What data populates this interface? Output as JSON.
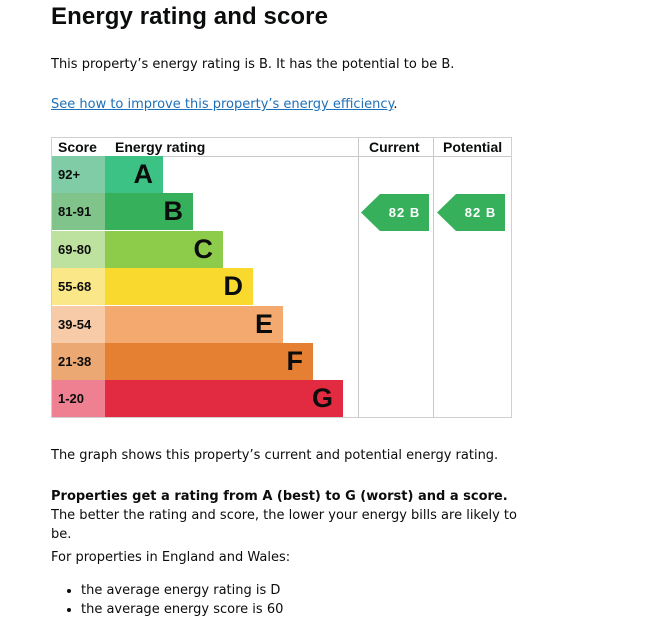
{
  "heading": "Energy rating and score",
  "intro": "This property’s energy rating is B. It has the potential to be B.",
  "improve_link": "See how to improve this property’s energy efficiency",
  "improve_link_suffix": ".",
  "chart": {
    "headers": {
      "score": "Score",
      "rating": "Energy rating",
      "current": "Current",
      "potential": "Potential"
    },
    "bands": [
      {
        "score": "92+",
        "letter": "A",
        "color": "#3dc285",
        "score_bg": "#7fcca6"
      },
      {
        "score": "81-91",
        "letter": "B",
        "color": "#37b05c",
        "score_bg": "#80c48b"
      },
      {
        "score": "69-80",
        "letter": "C",
        "color": "#8dcb4b",
        "score_bg": "#bde2a0"
      },
      {
        "score": "55-68",
        "letter": "D",
        "color": "#fad92f",
        "score_bg": "#fae788"
      },
      {
        "score": "39-54",
        "letter": "E",
        "color": "#f4aa6f",
        "score_bg": "#f7cba8"
      },
      {
        "score": "21-38",
        "letter": "F",
        "color": "#e57f31",
        "score_bg": "#eca872"
      },
      {
        "score": "1-20",
        "letter": "G",
        "color": "#e22a40",
        "score_bg": "#ee8091"
      }
    ],
    "current": {
      "score": 82,
      "letter": "B",
      "label": "82 B",
      "color": "#37b05c"
    },
    "potential": {
      "score": 82,
      "letter": "B",
      "label": "82 B",
      "color": "#37b05c"
    }
  },
  "graph_caption": "The graph shows this property’s current and potential energy rating.",
  "note_bold": "Properties get a rating from A (best) to G (worst) and a score.",
  "note_rest": " The better the rating and score, the lower your energy bills are likely to be.",
  "region_intro": "For properties in England and Wales:",
  "averages": [
    "the average energy rating is D",
    "the average energy score is 60"
  ]
}
